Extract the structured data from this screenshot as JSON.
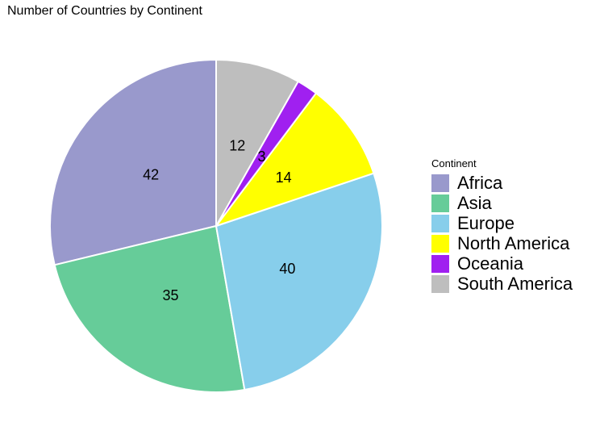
{
  "chart_data": {
    "type": "pie",
    "title": "Number of Countries by Continent",
    "legend_title": "Continent",
    "legend_position": "right",
    "categories": [
      "Africa",
      "Asia",
      "Europe",
      "North America",
      "Oceania",
      "South America"
    ],
    "values": [
      42,
      35,
      40,
      14,
      3,
      12
    ],
    "colors": [
      "#9999CC",
      "#66CC99",
      "#87CEEB",
      "#FFFF00",
      "#A020F0",
      "#BEBEBE"
    ],
    "direction": "counterclockwise",
    "start_angle": "top"
  }
}
